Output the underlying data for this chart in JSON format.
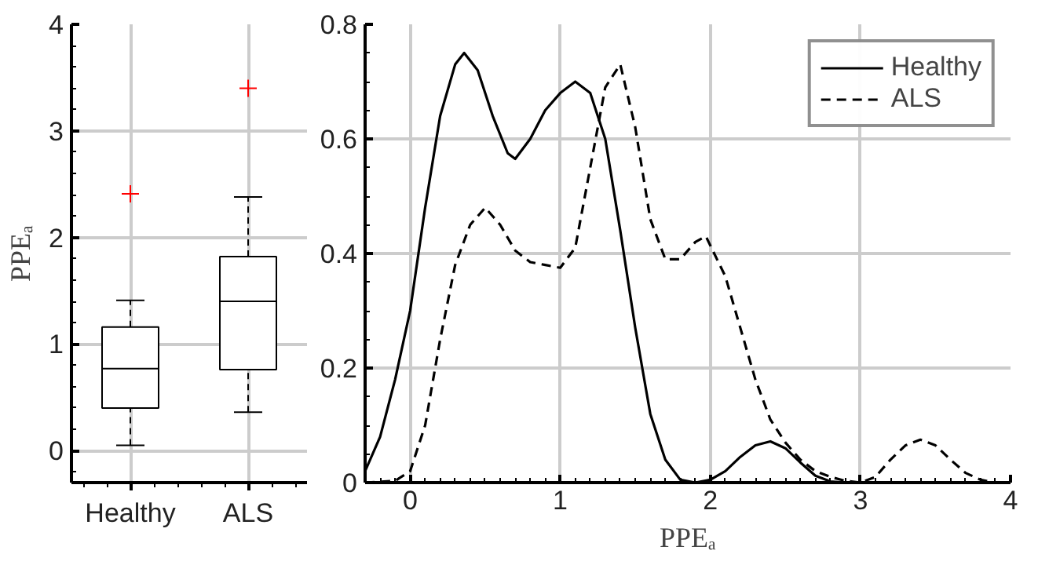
{
  "chart_data": [
    {
      "type": "box",
      "ylabel": "PPEₐ",
      "categories": [
        "Healthy",
        "ALS"
      ],
      "ylim": [
        -0.3,
        4
      ],
      "yticks": [
        0,
        1,
        2,
        3,
        4
      ],
      "grid": true,
      "color": "#000000",
      "boxes": [
        {
          "low": 0.05,
          "q1": 0.4,
          "median": 0.77,
          "q3": 1.16,
          "high": 1.41,
          "outliers": [
            2.41
          ]
        },
        {
          "low": 0.36,
          "q1": 0.76,
          "median": 1.4,
          "q3": 1.82,
          "high": 2.38,
          "outliers": [
            3.4
          ]
        }
      ]
    },
    {
      "type": "line",
      "xlabel": "PPEₐ",
      "xlim": [
        -0.3,
        4
      ],
      "ylim": [
        0,
        0.8
      ],
      "xticks": [
        0,
        1,
        2,
        3,
        4
      ],
      "yticks": [
        0,
        {
          "value": 0.2,
          "label": "0.2"
        },
        {
          "value": 0.4,
          "label": "0.4"
        },
        {
          "value": 0.6,
          "label": "0.6"
        },
        {
          "value": 0.8,
          "label": "0.8"
        }
      ],
      "grid": true,
      "legend": "top right",
      "series": [
        {
          "name": "Healthy",
          "color": "#000000",
          "line_style": "solid",
          "x": [
            -0.3,
            -0.2,
            -0.1,
            0,
            0.1,
            0.2,
            0.3,
            0.36,
            0.45,
            0.55,
            0.65,
            0.7,
            0.8,
            0.9,
            1.0,
            1.1,
            1.2,
            1.3,
            1.4,
            1.5,
            1.6,
            1.7,
            1.8,
            1.9,
            2.0,
            2.1,
            2.2,
            2.3,
            2.4,
            2.5,
            2.6,
            2.7,
            2.8,
            2.9,
            3.0
          ],
          "values": [
            0.02,
            0.08,
            0.18,
            0.3,
            0.48,
            0.64,
            0.73,
            0.75,
            0.72,
            0.64,
            0.575,
            0.565,
            0.6,
            0.65,
            0.68,
            0.7,
            0.68,
            0.6,
            0.44,
            0.27,
            0.12,
            0.04,
            0.005,
            0,
            0.005,
            0.02,
            0.045,
            0.065,
            0.072,
            0.06,
            0.035,
            0.012,
            0.002,
            0,
            0
          ]
        },
        {
          "name": "ALS",
          "color": "#000000",
          "line_style": "dashed",
          "x": [
            -0.3,
            -0.1,
            0,
            0.1,
            0.2,
            0.3,
            0.4,
            0.5,
            0.6,
            0.7,
            0.8,
            0.9,
            1.0,
            1.1,
            1.2,
            1.3,
            1.4,
            1.5,
            1.6,
            1.7,
            1.8,
            1.9,
            1.97,
            2.1,
            2.2,
            2.3,
            2.4,
            2.5,
            2.6,
            2.7,
            2.8,
            2.9,
            3.0,
            3.1,
            3.2,
            3.3,
            3.4,
            3.5,
            3.6,
            3.7,
            3.8,
            3.9,
            4.0
          ],
          "values": [
            0,
            0.003,
            0.02,
            0.1,
            0.25,
            0.38,
            0.45,
            0.48,
            0.45,
            0.405,
            0.385,
            0.38,
            0.375,
            0.41,
            0.55,
            0.69,
            0.73,
            0.62,
            0.46,
            0.39,
            0.39,
            0.42,
            0.43,
            0.36,
            0.27,
            0.18,
            0.11,
            0.07,
            0.04,
            0.02,
            0.01,
            0.003,
            0,
            0.01,
            0.04,
            0.065,
            0.075,
            0.065,
            0.04,
            0.017,
            0.005,
            0,
            0
          ]
        }
      ]
    }
  ]
}
